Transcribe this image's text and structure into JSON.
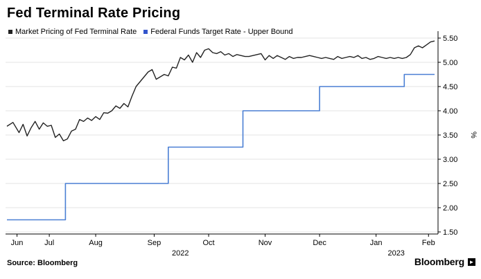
{
  "header": {
    "title": "Fed Terminal Rate Pricing",
    "source": "Source: Bloomberg",
    "brand": "Bloomberg"
  },
  "chart_data": {
    "type": "line",
    "title": "Fed Terminal Rate Pricing",
    "ylabel": "%",
    "ylim": [
      1.5,
      5.5
    ],
    "yticks": [
      "1.50",
      "2.00",
      "2.50",
      "3.00",
      "3.50",
      "4.00",
      "4.50",
      "5.00",
      "5.50"
    ],
    "ytick_values": [
      1.5,
      2.0,
      2.5,
      3.0,
      3.5,
      4.0,
      4.5,
      5.0,
      5.5
    ],
    "x_range": [
      0,
      250
    ],
    "x_ticks": [
      {
        "label": "Jun",
        "x": 5
      },
      {
        "label": "Jul",
        "x": 21
      },
      {
        "label": "Aug",
        "x": 44
      },
      {
        "label": "Sep",
        "x": 73
      },
      {
        "label": "Oct",
        "x": 100
      },
      {
        "label": "Nov",
        "x": 128
      },
      {
        "label": "Dec",
        "x": 155
      },
      {
        "label": "Jan",
        "x": 183
      },
      {
        "label": "Feb",
        "x": 209
      }
    ],
    "year_labels": [
      {
        "label": "2022",
        "x": 86
      },
      {
        "label": "2023",
        "x": 193
      }
    ],
    "series": [
      {
        "name": "Market Pricing of Fed Terminal Rate",
        "color": "#222222",
        "x": [
          0,
          3,
          6,
          8,
          10,
          12,
          14,
          16,
          18,
          20,
          22,
          24,
          26,
          28,
          30,
          32,
          34,
          36,
          38,
          40,
          42,
          44,
          46,
          48,
          50,
          52,
          54,
          56,
          58,
          60,
          62,
          64,
          66,
          68,
          70,
          72,
          74,
          76,
          78,
          80,
          82,
          84,
          86,
          88,
          90,
          92,
          94,
          96,
          98,
          100,
          102,
          104,
          106,
          108,
          110,
          112,
          114,
          116,
          118,
          120,
          122,
          124,
          126,
          128,
          130,
          132,
          134,
          136,
          138,
          140,
          142,
          144,
          146,
          148,
          150,
          152,
          154,
          156,
          158,
          160,
          162,
          164,
          166,
          168,
          170,
          172,
          174,
          176,
          178,
          180,
          182,
          184,
          186,
          188,
          190,
          192,
          194,
          196,
          198,
          200,
          202,
          204,
          206,
          208,
          210,
          212
        ],
        "values": [
          3.68,
          3.76,
          3.55,
          3.72,
          3.48,
          3.65,
          3.78,
          3.62,
          3.75,
          3.68,
          3.7,
          3.45,
          3.52,
          3.38,
          3.42,
          3.58,
          3.62,
          3.82,
          3.78,
          3.85,
          3.8,
          3.88,
          3.82,
          3.96,
          3.95,
          4.0,
          4.1,
          4.05,
          4.15,
          4.08,
          4.3,
          4.5,
          4.6,
          4.7,
          4.8,
          4.85,
          4.65,
          4.7,
          4.75,
          4.72,
          4.9,
          4.88,
          5.1,
          5.05,
          5.15,
          5.0,
          5.2,
          5.1,
          5.25,
          5.28,
          5.2,
          5.18,
          5.22,
          5.15,
          5.18,
          5.12,
          5.16,
          5.14,
          5.12,
          5.12,
          5.14,
          5.16,
          5.18,
          5.05,
          5.14,
          5.08,
          5.14,
          5.1,
          5.06,
          5.12,
          5.08,
          5.1,
          5.1,
          5.12,
          5.14,
          5.12,
          5.1,
          5.08,
          5.1,
          5.08,
          5.06,
          5.12,
          5.08,
          5.1,
          5.12,
          5.1,
          5.14,
          5.08,
          5.1,
          5.06,
          5.08,
          5.12,
          5.1,
          5.08,
          5.1,
          5.08,
          5.1,
          5.08,
          5.1,
          5.16,
          5.3,
          5.34,
          5.3,
          5.36,
          5.42,
          5.44
        ]
      },
      {
        "name": "Federal Funds Target Rate - Upper Bound",
        "color": "#4a7fd4",
        "step": true,
        "x": [
          0,
          29,
          29,
          80,
          80,
          117,
          117,
          155,
          155,
          197,
          197,
          212
        ],
        "values": [
          1.75,
          1.75,
          2.5,
          2.5,
          3.25,
          3.25,
          4.0,
          4.0,
          4.5,
          4.5,
          4.75,
          4.75
        ]
      }
    ],
    "legend": [
      {
        "label": "Market Pricing of Fed Terminal Rate",
        "color": "#222222"
      },
      {
        "label": "Federal Funds Target Rate - Upper Bound",
        "color": "#3355cc"
      }
    ]
  }
}
